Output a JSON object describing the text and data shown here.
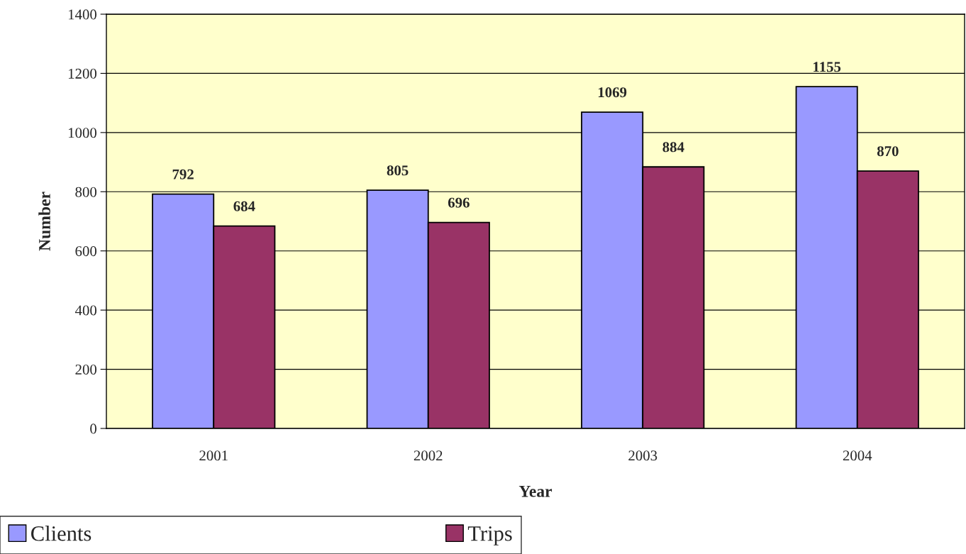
{
  "chart_data": {
    "type": "bar",
    "xlabel": "Year",
    "ylabel": "Number",
    "categories": [
      "2001",
      "2002",
      "2003",
      "2004"
    ],
    "series": [
      {
        "name": "Clients",
        "color": "#9999ff",
        "values": [
          792,
          805,
          1069,
          1155
        ]
      },
      {
        "name": "Trips",
        "color": "#993366",
        "values": [
          684,
          696,
          884,
          870
        ]
      }
    ],
    "ylim": [
      0,
      1400
    ],
    "yticks": [
      0,
      200,
      400,
      600,
      800,
      1000,
      1200,
      1400
    ],
    "grid": "y",
    "legend": "bottom left",
    "data_labels": true
  }
}
